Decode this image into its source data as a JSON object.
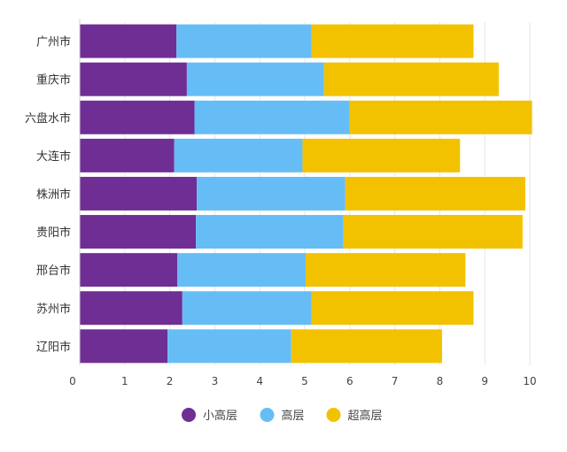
{
  "chart_data": {
    "type": "bar",
    "orientation": "horizontal",
    "stacked": true,
    "title": "",
    "xlabel": "",
    "ylabel": "",
    "xlim": [
      0,
      10.5
    ],
    "x_ticks": [
      0,
      1,
      2,
      3,
      4,
      5,
      6,
      7,
      8,
      9,
      10
    ],
    "grid": true,
    "legend_position": "bottom",
    "categories": [
      "广州市",
      "重庆市",
      "六盘水市",
      "大连市",
      "株洲市",
      "贵阳市",
      "邢台市",
      "苏州市",
      "辽阳市"
    ],
    "series": [
      {
        "name": "小高层",
        "color": "#6f2e94",
        "values": [
          2.15,
          2.38,
          2.55,
          2.1,
          2.6,
          2.58,
          2.17,
          2.28,
          1.95
        ]
      },
      {
        "name": "高层",
        "color": "#66bdf5",
        "values": [
          3.0,
          3.05,
          3.45,
          2.85,
          3.3,
          3.28,
          2.85,
          2.87,
          2.75
        ]
      },
      {
        "name": "超高层",
        "color": "#f2c200",
        "values": [
          3.6,
          3.88,
          4.05,
          3.5,
          4.0,
          3.98,
          3.55,
          3.6,
          3.35
        ]
      }
    ]
  }
}
